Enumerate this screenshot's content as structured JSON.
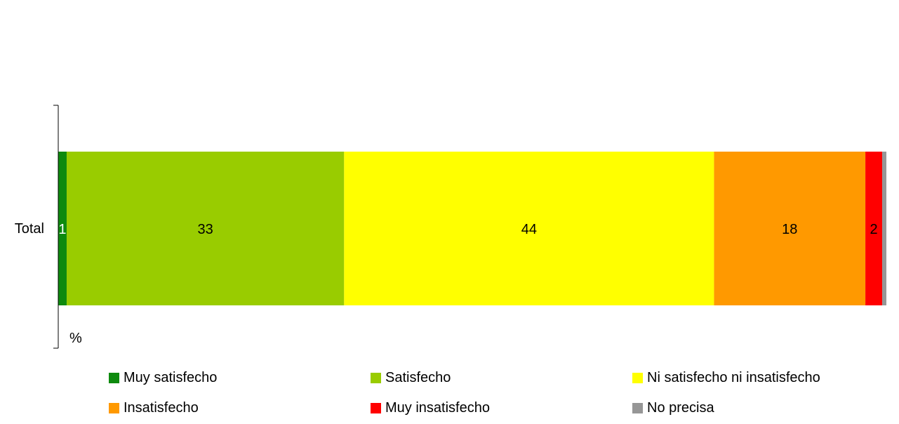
{
  "chart_data": {
    "type": "bar",
    "orientation": "horizontal",
    "stacked": true,
    "categories": [
      "Total"
    ],
    "xlabel": "%",
    "xlim": [
      0,
      100
    ],
    "grid": false,
    "legend_position": "bottom",
    "series": [
      {
        "name": "Muy satisfecho",
        "values": [
          1
        ],
        "color": "#0e8a0e",
        "label_color": "#ffffff",
        "label": "1"
      },
      {
        "name": "Satisfecho",
        "values": [
          33
        ],
        "color": "#99cc00",
        "label_color": "#000000",
        "label": "33"
      },
      {
        "name": "Ni satisfecho ni insatisfecho",
        "values": [
          44
        ],
        "color": "#ffff00",
        "label_color": "#000000",
        "label": "44"
      },
      {
        "name": "Insatisfecho",
        "values": [
          18
        ],
        "color": "#ff9900",
        "label_color": "#000000",
        "label": "18"
      },
      {
        "name": "Muy insatisfecho",
        "values": [
          2
        ],
        "color": "#ff0000",
        "label_color": "#000000",
        "label": "2"
      },
      {
        "name": "No precisa",
        "values": [
          0.5
        ],
        "color": "#969696",
        "label_color": "#000000",
        "label": ""
      }
    ]
  }
}
